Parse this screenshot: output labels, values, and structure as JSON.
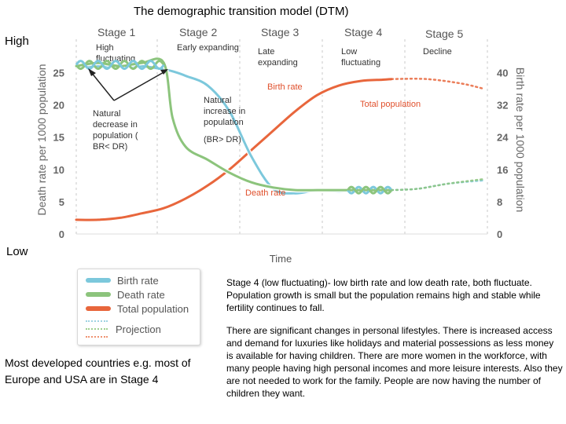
{
  "title": "The demographic transition model (DTM)",
  "side_labels": {
    "high": "High",
    "low": "Low"
  },
  "stages": {
    "names": [
      "Stage 1",
      "Stage 2",
      "Stage 3",
      "Stage 4",
      "Stage 5"
    ],
    "descriptions": [
      "High\nfluctuating",
      "Early expanding",
      "Late\nexpanding",
      "Low\nfluctuating",
      "Decline"
    ]
  },
  "annotations": {
    "natural_decrease": "Natural\ndecrease in\npopulation (\nBR< DR)",
    "natural_increase": "Natural\nincrease in\npopulation",
    "br_gt_dr": "(BR> DR)",
    "birth_rate": "Birth rate",
    "total_population": "Total population",
    "death_rate": "Death rate"
  },
  "legend": {
    "items": [
      "Birth rate",
      "Death rate",
      "Total population"
    ],
    "projection": "Projection"
  },
  "colors": {
    "birth": "#7cc8dc",
    "death": "#8cc47c",
    "population": "#e8663c"
  },
  "text_blocks": {
    "stage4_desc": "Stage 4 (low fluctuating)- low birth rate and low death rate, both fluctuate. Population growth is small but the population remains high and stable while fertility continues to fall.",
    "lifestyle_desc": "There are significant changes in personal lifestyles. There is increased access and demand for luxuries like holidays and material possessions as less money is available for having children. There are more women in the workforce, with many people having high personal incomes and more leisure interests.  Also they are not needed to work for the family. People are now having the number of children they want.",
    "examples": "Most developed countries e.g. most of Europe and USA are in Stage 4"
  },
  "chart_data": {
    "type": "line",
    "xlabel": "Time",
    "ylabel": "Death rate per 1000 population",
    "ylabel_right": "Birth rate per 1000 population",
    "ylim": [
      0,
      27
    ],
    "ylim_right": [
      0,
      43.2
    ],
    "yticks": [
      0,
      5,
      10,
      15,
      20,
      25
    ],
    "yticks_right": [
      0,
      8,
      16,
      24,
      32,
      40
    ],
    "grid": false,
    "series": [
      {
        "name": "Birth rate",
        "x": [
          0,
          5,
          10,
          15,
          20,
          22,
          25,
          30,
          35,
          40,
          45,
          50,
          55,
          60,
          65,
          70,
          72
        ],
        "values": [
          26,
          26,
          26,
          26,
          25.5,
          25.2,
          24.5,
          23,
          19,
          12,
          7,
          6.3,
          6.8,
          6.6,
          6.8,
          6.7,
          6.8
        ]
      },
      {
        "name": "Death rate",
        "x": [
          0,
          5,
          10,
          15,
          20,
          22,
          25,
          30,
          35,
          40,
          45,
          50,
          55,
          60,
          65,
          70,
          72
        ],
        "values": [
          26,
          26.5,
          26,
          26.5,
          26.5,
          18,
          13.5,
          11.5,
          9.5,
          8,
          7.2,
          6.8,
          6.8,
          6.8,
          6.8,
          6.8,
          6.8
        ]
      },
      {
        "name": "Total population",
        "x": [
          0,
          5,
          10,
          15,
          20,
          25,
          30,
          35,
          40,
          45,
          50,
          55,
          60,
          65,
          70,
          72
        ],
        "values": [
          2.2,
          2.2,
          2.5,
          3.2,
          4,
          5.5,
          7.5,
          10,
          13,
          16,
          19,
          21.5,
          23,
          23.7,
          23.9,
          24
        ]
      }
    ],
    "projection": [
      {
        "name": "Birth rate",
        "x": [
          72,
          78,
          85,
          93
        ],
        "values": [
          6.8,
          7,
          7.8,
          8.3
        ]
      },
      {
        "name": "Death rate",
        "x": [
          72,
          78,
          85,
          93
        ],
        "values": [
          6.8,
          7,
          7.8,
          8.5
        ]
      },
      {
        "name": "Total population",
        "x": [
          72,
          80,
          88,
          93
        ],
        "values": [
          24,
          24,
          23.3,
          22.5
        ]
      }
    ],
    "xlim": [
      0,
      93
    ]
  }
}
